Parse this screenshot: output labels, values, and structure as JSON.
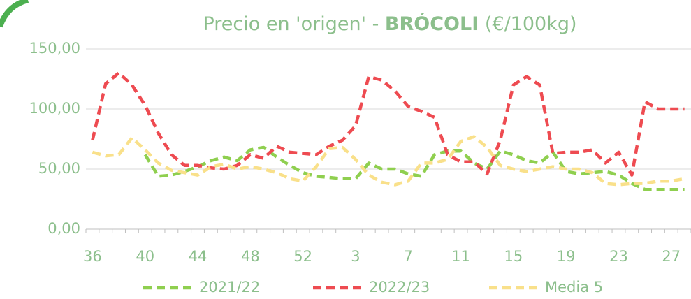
{
  "chart_data": {
    "type": "line",
    "title": [
      "Precio en 'origen' -",
      "BRÓCOLI",
      "(€/100kg)"
    ],
    "categories": [
      "36",
      null,
      null,
      null,
      "40",
      null,
      null,
      null,
      "44",
      null,
      null,
      null,
      "48",
      null,
      null,
      null,
      "52",
      null,
      null,
      null,
      "3",
      null,
      null,
      null,
      "7",
      null,
      null,
      null,
      "11",
      null,
      null,
      null,
      "15",
      null,
      null,
      null,
      "19",
      null,
      null,
      null,
      "23",
      null,
      null,
      null,
      "27",
      null
    ],
    "series": [
      {
        "name": "2021/22",
        "color": "#8fcf4f",
        "values": [
          null,
          null,
          null,
          null,
          62,
          44,
          45,
          48,
          52,
          57,
          60,
          57,
          66,
          68,
          60,
          53,
          47,
          44,
          43,
          42,
          42,
          55,
          50,
          50,
          46,
          44,
          62,
          65,
          65,
          55,
          50,
          65,
          62,
          57,
          55,
          64,
          48,
          46,
          47,
          48,
          45,
          38,
          33,
          33,
          33,
          33
        ]
      },
      {
        "name": "2022/23",
        "color": "#ee4b51",
        "values": [
          74,
          121,
          130,
          120,
          103,
          80,
          62,
          53,
          53,
          51,
          50,
          53,
          62,
          59,
          69,
          64,
          63,
          62,
          69,
          74,
          86,
          127,
          124,
          115,
          102,
          98,
          93,
          62,
          56,
          56,
          46,
          74,
          120,
          127,
          120,
          63,
          64,
          64,
          66,
          55,
          64,
          45,
          106,
          100,
          100,
          100
        ]
      },
      {
        "name": "Media 5",
        "color": "#f9e08a",
        "values": [
          64,
          61,
          62,
          76,
          66,
          55,
          49,
          47,
          45,
          52,
          54,
          50,
          52,
          50,
          47,
          42,
          40,
          52,
          67,
          68,
          58,
          45,
          39,
          37,
          40,
          55,
          55,
          58,
          73,
          77,
          68,
          53,
          50,
          48,
          50,
          52,
          50,
          50,
          47,
          38,
          37,
          38,
          38,
          40,
          40,
          42
        ]
      }
    ],
    "ylim": [
      0,
      150
    ],
    "yticks": [
      {
        "value": 0,
        "label": "0,00"
      },
      {
        "value": 50,
        "label": "50,00"
      },
      {
        "value": 100,
        "label": "100,00"
      },
      {
        "value": 150,
        "label": "150,00"
      }
    ],
    "grid": true,
    "legend": "bottom"
  }
}
